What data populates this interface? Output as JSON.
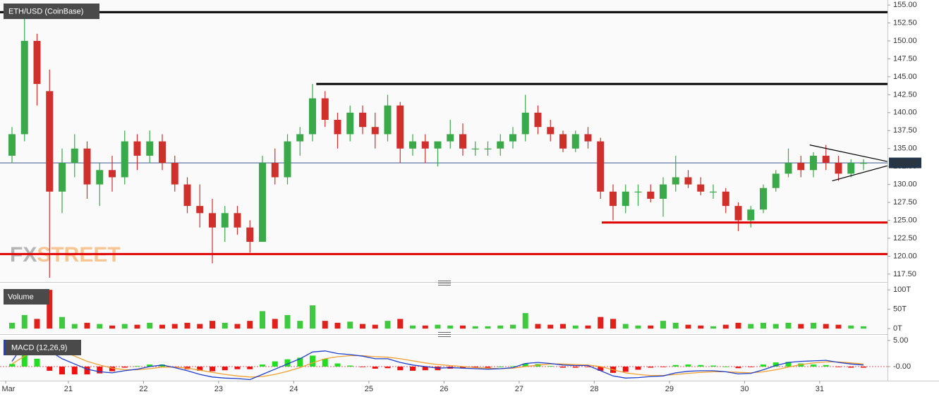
{
  "chart_data": {
    "type": "candlestick",
    "title": "ETH/USD (CoinBase)",
    "watermark": [
      "FX",
      "STREET"
    ],
    "categories": [
      "Mar",
      null,
      null,
      null,
      null,
      "21",
      null,
      null,
      null,
      null,
      null,
      "22",
      null,
      null,
      null,
      null,
      null,
      "23",
      null,
      null,
      null,
      null,
      null,
      "24",
      null,
      null,
      null,
      null,
      null,
      "25",
      null,
      null,
      null,
      null,
      null,
      "26",
      null,
      null,
      null,
      null,
      null,
      "27",
      null,
      null,
      null,
      null,
      null,
      "28",
      null,
      null,
      null,
      null,
      null,
      "29",
      null,
      null,
      null,
      null,
      null,
      "30",
      null,
      null,
      null,
      null,
      null,
      "31",
      null,
      null,
      null
    ],
    "open": [
      134,
      137,
      150,
      143,
      129,
      133,
      135,
      130,
      132,
      131,
      136,
      134,
      136,
      133,
      130,
      127,
      126,
      124,
      126,
      124,
      122,
      133,
      131,
      136,
      137,
      142,
      139,
      137,
      140,
      138,
      137,
      141,
      135,
      136,
      135,
      136,
      137,
      135,
      135,
      135,
      136,
      137,
      140,
      138,
      137,
      135,
      137,
      136,
      129,
      127,
      129,
      129,
      128,
      130,
      131,
      130,
      129,
      129,
      127,
      125,
      126.5,
      129.5,
      131.5,
      133,
      132,
      134,
      133,
      131.5,
      133
    ],
    "high": [
      138,
      153.5,
      151,
      146,
      135,
      137,
      136,
      133,
      134,
      137.5,
      137,
      137.5,
      137,
      134,
      131,
      130,
      128,
      127,
      127,
      125,
      134,
      135,
      137,
      138,
      144,
      143,
      140,
      141,
      141,
      140,
      142.5,
      141.5,
      137,
      137,
      136,
      139,
      138.5,
      136,
      136,
      137,
      138,
      142.5,
      141,
      139,
      137.5,
      137.5,
      138,
      136.5,
      130,
      130,
      130,
      130,
      131,
      134,
      132,
      131,
      130,
      129.5,
      127.5,
      127,
      130,
      132,
      135,
      134,
      134.5,
      135.5,
      134,
      133.5,
      133.5
    ],
    "low": [
      133,
      136,
      141,
      117,
      126,
      131,
      128,
      127,
      129,
      130,
      132,
      133,
      132,
      129,
      126,
      124,
      119,
      122,
      123,
      120.5,
      122,
      130,
      130,
      134,
      136,
      138,
      135,
      136,
      137,
      135,
      136,
      133,
      134,
      133,
      132.5,
      135,
      134,
      134,
      134,
      134,
      135,
      136,
      137,
      136,
      134.5,
      134.5,
      135,
      128,
      125,
      126,
      127,
      127.5,
      125.5,
      129,
      129.5,
      128.5,
      128,
      126,
      123.5,
      124,
      126,
      129,
      131,
      131,
      131,
      132,
      130.5,
      131,
      132
    ],
    "close": [
      137,
      150,
      144,
      129,
      133,
      135,
      130,
      132,
      131,
      136,
      134,
      136,
      133,
      130,
      127,
      126,
      124,
      126,
      124,
      122,
      133,
      131,
      136,
      137,
      142,
      139,
      137,
      140,
      138,
      137,
      141,
      135,
      136,
      135,
      136,
      137,
      135,
      135,
      135,
      136,
      137,
      140,
      138,
      137,
      135,
      137,
      136,
      129,
      127,
      129,
      129,
      128,
      130,
      131,
      130,
      129,
      129,
      127,
      125,
      126.5,
      129.5,
      131.5,
      133,
      132,
      134,
      133,
      131.5,
      133,
      133
    ],
    "up_color": "#3aa94a",
    "down_color": "#d0302b",
    "ylim": [
      116.8,
      155.7
    ],
    "yticks": [
      {
        "value": 117.5,
        "label": "117.50"
      },
      {
        "value": 120,
        "label": "120.00"
      },
      {
        "value": 122.5,
        "label": "122.50"
      },
      {
        "value": 125,
        "label": "125.00"
      },
      {
        "value": 127.5,
        "label": "127.50"
      },
      {
        "value": 130,
        "label": "130.00"
      },
      {
        "value": 132.5,
        "label": "132.50"
      },
      {
        "value": 135,
        "label": "135.00"
      },
      {
        "value": 137.5,
        "label": "137.50"
      },
      {
        "value": 140,
        "label": "140.00"
      },
      {
        "value": 142.5,
        "label": "142.50"
      },
      {
        "value": 145,
        "label": "145.00"
      },
      {
        "value": 147.5,
        "label": "147.50"
      },
      {
        "value": 150,
        "label": "150.00"
      },
      {
        "value": 152.5,
        "label": "152.50"
      },
      {
        "value": 155,
        "label": "155.00"
      }
    ],
    "last_price": {
      "value": 133,
      "label": "133.00",
      "color": "#1f3f7f"
    },
    "levels": [
      {
        "value": 154,
        "color": "#000000"
      },
      {
        "value": 144,
        "start": 24.3,
        "color": "#000000"
      },
      {
        "value": 120.3,
        "color": "#e00000"
      },
      {
        "value": 124.7,
        "start": 47.1,
        "color": "#e00000"
      }
    ],
    "trendlines": [
      {
        "x": [
          63.7,
          69.9
        ],
        "y": [
          135.5,
          133.2
        ]
      },
      {
        "x": [
          65.5,
          69.9
        ],
        "y": [
          130.5,
          132.6
        ]
      }
    ],
    "volume": {
      "title": "Volume",
      "values": [
        15,
        35,
        25,
        100,
        30,
        12,
        15,
        12,
        8,
        12,
        10,
        15,
        10,
        12,
        15,
        12,
        20,
        15,
        12,
        20,
        45,
        25,
        35,
        20,
        60,
        20,
        15,
        18,
        12,
        10,
        20,
        25,
        8,
        8,
        10,
        8,
        8,
        6,
        6,
        8,
        10,
        40,
        12,
        10,
        12,
        8,
        8,
        30,
        25,
        12,
        8,
        8,
        20,
        15,
        10,
        8,
        6,
        10,
        15,
        12,
        15,
        12,
        15,
        12,
        15,
        12,
        10,
        8,
        6
      ],
      "ylim": [
        -7,
        113
      ],
      "yticks": [
        {
          "value": 0,
          "label": "0T"
        },
        {
          "value": 50,
          "label": "50T"
        },
        {
          "value": 100,
          "label": "100T"
        }
      ],
      "up_color": "#3ec93e",
      "down_color": "#e0201b"
    },
    "macd": {
      "title": "MACD (12,26,9)",
      "macd_line": {
        "color": "#1f3fcc",
        "values": [
          1,
          4.5,
          5,
          3,
          1.5,
          0.5,
          -0.5,
          -1,
          -1.2,
          -0.8,
          -0.5,
          0,
          0.3,
          -0.2,
          -0.8,
          -1.5,
          -2,
          -2.2,
          -2.3,
          -2.5,
          -1.5,
          -0.5,
          0.5,
          1.5,
          2.8,
          3,
          2.5,
          2.3,
          2,
          1.5,
          1.5,
          0.8,
          0.3,
          0,
          -0.3,
          -0.2,
          -0.3,
          -0.4,
          -0.5,
          -0.4,
          -0.2,
          0.6,
          0.8,
          0.6,
          0.3,
          0.2,
          0.2,
          -0.8,
          -1.8,
          -2.2,
          -2.1,
          -1.9,
          -1.8,
          -1.2,
          -0.9,
          -0.8,
          -0.8,
          -1,
          -1.4,
          -1.3,
          -0.6,
          0.2,
          0.8,
          1,
          1.1,
          1.2,
          0.8,
          0.5,
          0.3
        ]
      },
      "signal": {
        "color": "#f0a030",
        "values": [
          0.5,
          2,
          3.5,
          3.8,
          3,
          2,
          1,
          0.3,
          -0.3,
          -0.6,
          -0.6,
          -0.4,
          -0.1,
          -0.1,
          -0.3,
          -0.7,
          -1.1,
          -1.5,
          -1.8,
          -2,
          -1.9,
          -1.5,
          -0.9,
          -0.2,
          0.7,
          1.5,
          1.9,
          2.1,
          2.1,
          1.9,
          1.8,
          1.5,
          1.1,
          0.7,
          0.4,
          0.2,
          0,
          -0.2,
          -0.3,
          -0.4,
          -0.3,
          0,
          0.3,
          0.5,
          0.5,
          0.4,
          0.3,
          0,
          -0.6,
          -1.2,
          -1.5,
          -1.7,
          -1.7,
          -1.5,
          -1.3,
          -1.1,
          -1,
          -1,
          -1.1,
          -1.2,
          -1,
          -0.6,
          -0.1,
          0.4,
          0.7,
          0.9,
          0.9,
          0.7,
          0.5
        ]
      },
      "histogram": {
        "up_color": "#22dd22",
        "down_color": "#ee1111",
        "values": [
          0.5,
          2.5,
          1.5,
          -0.8,
          -1.5,
          -1.5,
          -1.5,
          -1.3,
          -0.9,
          -0.2,
          0.1,
          0.4,
          0.4,
          -0.1,
          -0.5,
          -0.8,
          -0.9,
          -0.7,
          -0.5,
          -0.5,
          0.4,
          1,
          1.4,
          1.7,
          2.1,
          1.5,
          0.6,
          0.2,
          -0.1,
          -0.4,
          -0.3,
          -0.7,
          -0.8,
          -0.7,
          -0.7,
          -0.4,
          -0.3,
          -0.2,
          -0.2,
          0,
          0.1,
          0.6,
          0.5,
          0.1,
          -0.2,
          -0.2,
          -0.1,
          -0.8,
          -1.2,
          -1,
          -0.6,
          -0.2,
          -0.1,
          0.3,
          0.4,
          0.3,
          0.2,
          0,
          -0.3,
          -0.1,
          0.4,
          0.8,
          0.9,
          0.6,
          0.4,
          0.3,
          -0.1,
          -0.2,
          -0.2
        ]
      },
      "ylim": [
        -2.7,
        5.68
      ],
      "yticks": [
        {
          "value": 5,
          "label": "5.00"
        },
        {
          "value": 0,
          "label": "-0.00"
        }
      ]
    }
  }
}
